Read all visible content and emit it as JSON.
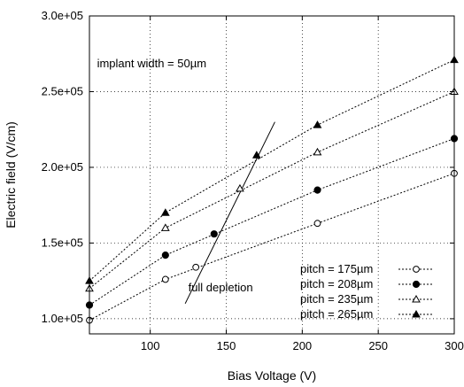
{
  "chart_data": {
    "type": "line",
    "xlabel": "Bias Voltage (V)",
    "ylabel": "Electric field (V/cm)",
    "xlim": [
      60,
      300
    ],
    "ylim": [
      90000,
      300000
    ],
    "grid": true,
    "legend_position": "bottom-right",
    "x_ticks": [
      100,
      150,
      200,
      250,
      300
    ],
    "x_tick_labels": [
      "100",
      "150",
      "200",
      "250",
      "300"
    ],
    "y_ticks": [
      100000,
      150000,
      200000,
      250000,
      300000
    ],
    "y_tick_labels": [
      "1.0e+05",
      "1.5e+05",
      "2.0e+05",
      "2.5e+05",
      "3.0e+05"
    ],
    "series": [
      {
        "name": "pitch = 175µm",
        "marker": "open-circle",
        "color": "#000000",
        "x": [
          60,
          110,
          210,
          300
        ],
        "y": [
          99000,
          126000,
          163000,
          196000
        ]
      },
      {
        "name": "pitch = 208µm",
        "marker": "filled-circle",
        "color": "#000000",
        "x": [
          60,
          110,
          210,
          300
        ],
        "y": [
          109000,
          142000,
          185000,
          219000
        ]
      },
      {
        "name": "pitch = 235µm",
        "marker": "open-triangle",
        "color": "#000000",
        "x": [
          60,
          110,
          210,
          300
        ],
        "y": [
          120000,
          160000,
          210000,
          250000
        ]
      },
      {
        "name": "pitch = 265µm",
        "marker": "filled-triangle",
        "color": "#000000",
        "x": [
          60,
          110,
          210,
          300
        ],
        "y": [
          125000,
          170000,
          228000,
          271000
        ]
      }
    ],
    "depletion": {
      "label": "full depletion",
      "x": [
        123,
        182
      ],
      "y": [
        110000,
        230000
      ],
      "points": [
        {
          "x": 130,
          "y": 134000,
          "marker": "open-circle"
        },
        {
          "x": 142,
          "y": 156000,
          "marker": "filled-circle"
        },
        {
          "x": 159,
          "y": 186000,
          "marker": "open-triangle"
        },
        {
          "x": 170,
          "y": 208000,
          "marker": "filled-triangle"
        }
      ]
    },
    "annotations": [
      {
        "text": "implant width = 50µm",
        "x": 65,
        "y": 266000
      },
      {
        "text": "full depletion",
        "x": 125,
        "y": 118000
      }
    ]
  }
}
